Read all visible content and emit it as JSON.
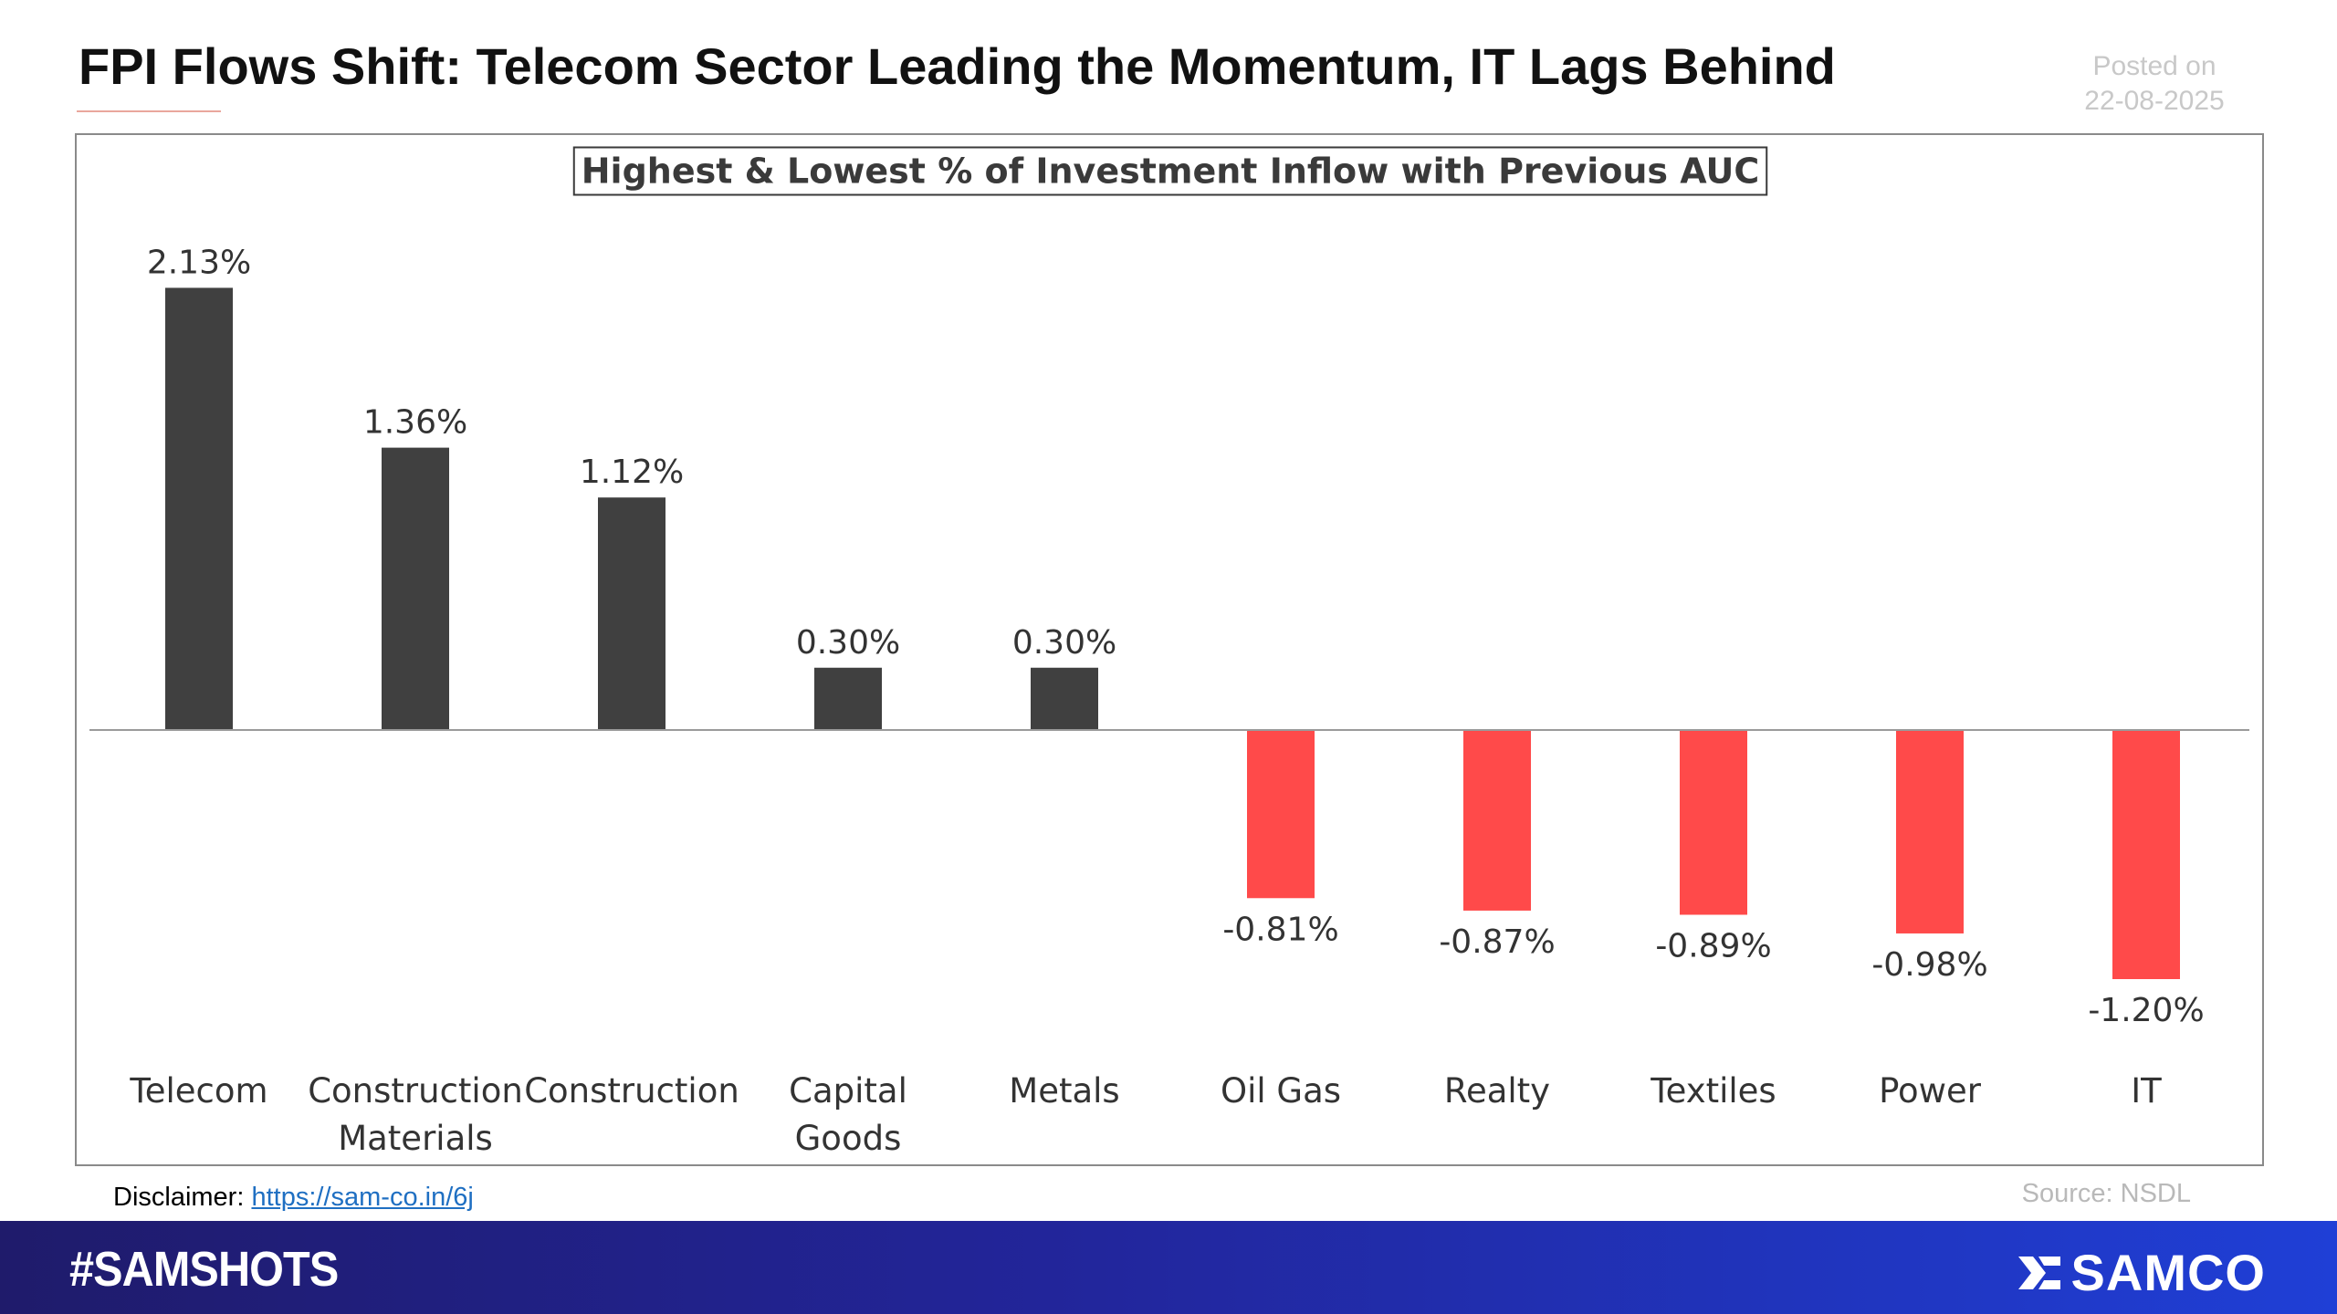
{
  "header": {
    "title": "FPI Flows Shift: Telecom Sector Leading the Momentum, IT Lags Behind",
    "posted_label": "Posted on",
    "posted_date": "22-08-2025"
  },
  "chart_data": {
    "type": "bar",
    "title": "Highest & Lowest % of Investment Inflow with Previous AUC",
    "categories": [
      [
        "Telecom"
      ],
      [
        "Construction",
        "Materials"
      ],
      [
        "Construction"
      ],
      [
        "Capital",
        "Goods"
      ],
      [
        "Metals"
      ],
      [
        "Oil Gas"
      ],
      [
        "Realty"
      ],
      [
        "Textiles"
      ],
      [
        "Power"
      ],
      [
        "IT"
      ]
    ],
    "values": [
      2.13,
      1.36,
      1.12,
      0.3,
      0.3,
      -0.81,
      -0.87,
      -0.89,
      -0.98,
      -1.2
    ],
    "value_labels": [
      "2.13%",
      "1.36%",
      "1.12%",
      "0.30%",
      "0.30%",
      "-0.81%",
      "-0.87%",
      "-0.89%",
      "-0.98%",
      "-1.20%"
    ],
    "colors": {
      "positive": "#404040",
      "negative": "#ff4a4a",
      "axis": "#9a9a9a"
    },
    "ylim": [
      -1.5,
      2.6
    ],
    "legend": "none",
    "grid": false
  },
  "footer": {
    "disclaimer_label": "Disclaimer:",
    "disclaimer_link": "https://sam-co.in/6j",
    "source": "Source: NSDL",
    "hashtag": "#SAMSHOTS",
    "brand": "SAMCO",
    "brand_icon": "samco-logo-icon"
  }
}
